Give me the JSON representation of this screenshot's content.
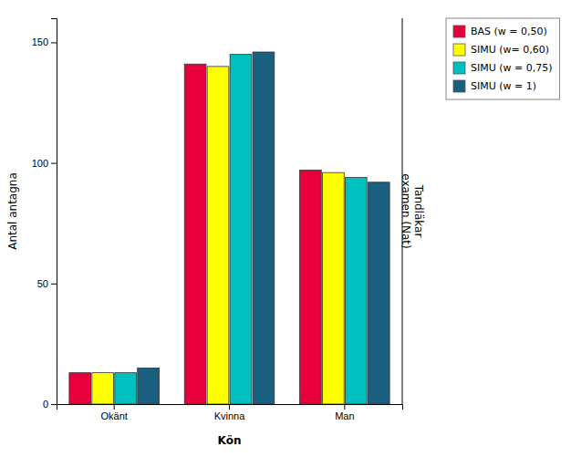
{
  "chart_data": {
    "type": "bar",
    "categories": [
      "Okänt",
      "Kvinna",
      "Man"
    ],
    "series": [
      {
        "name": "BAS (w = 0,50)",
        "color": "#E8003D",
        "values": [
          13,
          141,
          97
        ]
      },
      {
        "name": "SIMU (w= 0,60)",
        "color": "#FFFF00",
        "values": [
          13,
          140,
          96
        ]
      },
      {
        "name": "SIMU (w = 0,75)",
        "color": "#00BFBF",
        "values": [
          13,
          145,
          94
        ]
      },
      {
        "name": "SIMU (w = 1)",
        "color": "#1B5F7E",
        "values": [
          15,
          146,
          92
        ]
      }
    ],
    "xlabel": "Kön",
    "ylabel": "Antal antagna",
    "y2label": "Tandläkar\nexamen (Nat)",
    "ylim": [
      0,
      160
    ],
    "yticks": [
      0,
      50,
      100,
      150
    ],
    "grid": false,
    "legend": "right"
  }
}
